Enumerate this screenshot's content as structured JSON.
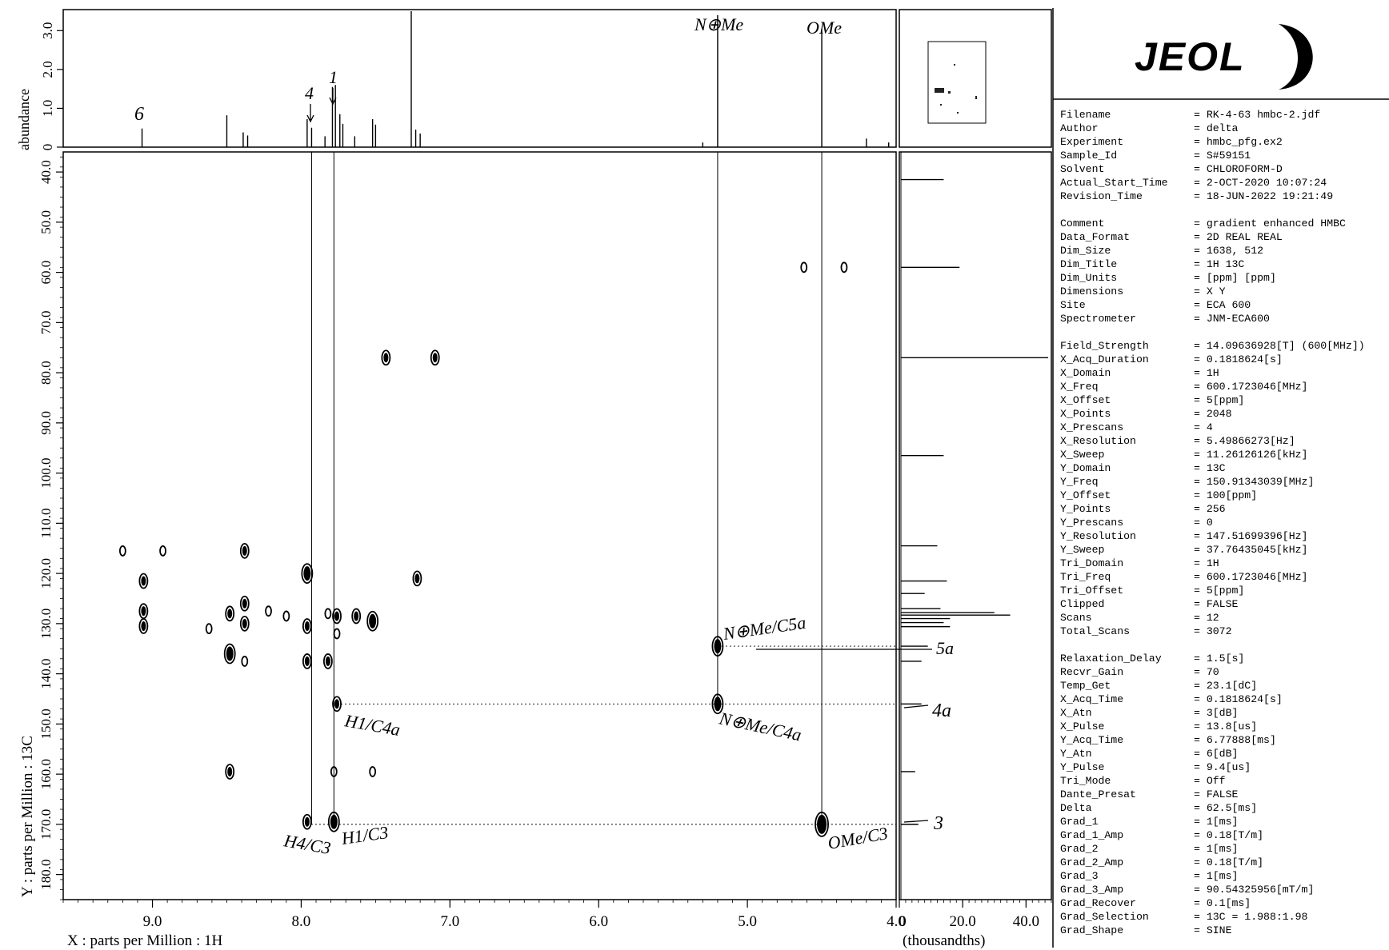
{
  "chart_data": {
    "type": "scatter",
    "title": "",
    "xlabel": "X : parts per Million : 1H",
    "ylabel": "Y : parts per Million : 13C",
    "top_ylabel": "abundance",
    "right_xlabel": "(thousandths)",
    "xlim": [
      9.6,
      4.0
    ],
    "ylim": [
      36.0,
      185.0
    ],
    "x_ticks": [
      {
        "v": 9.0,
        "label": "9.0"
      },
      {
        "v": 8.0,
        "label": "8.0"
      },
      {
        "v": 7.0,
        "label": "7.0"
      },
      {
        "v": 6.0,
        "label": "6.0"
      },
      {
        "v": 5.0,
        "label": "5.0"
      },
      {
        "v": 4.0,
        "label": "4.0"
      }
    ],
    "y_ticks": [
      {
        "v": 40,
        "label": "40.0"
      },
      {
        "v": 50,
        "label": "50.0"
      },
      {
        "v": 60,
        "label": "60.0"
      },
      {
        "v": 70,
        "label": "70.0"
      },
      {
        "v": 80,
        "label": "80.0"
      },
      {
        "v": 90,
        "label": "90.0"
      },
      {
        "v": 100,
        "label": "100.0"
      },
      {
        "v": 110,
        "label": "110.0"
      },
      {
        "v": 120,
        "label": "120.0"
      },
      {
        "v": 130,
        "label": "130.0"
      },
      {
        "v": 140,
        "label": "140.0"
      },
      {
        "v": 150,
        "label": "150.0"
      },
      {
        "v": 160,
        "label": "160.0"
      },
      {
        "v": 170,
        "label": "170.0"
      },
      {
        "v": 180,
        "label": "180.0"
      }
    ],
    "top_ticks": [
      {
        "v": 0.0,
        "label": "0"
      },
      {
        "v": 1.0,
        "label": "1.0"
      },
      {
        "v": 2.0,
        "label": "2.0"
      },
      {
        "v": 3.0,
        "label": "3.0"
      }
    ],
    "top_ylim": [
      0.0,
      3.5
    ],
    "right_ticks": [
      {
        "v": 0,
        "label": "0"
      },
      {
        "v": 20,
        "label": "20.0"
      },
      {
        "v": 40,
        "label": "40.0"
      }
    ],
    "right_xlim": [
      0,
      48
    ],
    "cross_peaks": [
      {
        "x": 9.2,
        "y": 115.5,
        "s": 1
      },
      {
        "x": 8.93,
        "y": 115.5,
        "s": 1
      },
      {
        "x": 8.38,
        "y": 115.5,
        "s": 2
      },
      {
        "x": 9.06,
        "y": 121.5,
        "s": 2
      },
      {
        "x": 9.06,
        "y": 127.5,
        "s": 2
      },
      {
        "x": 9.06,
        "y": 130.5,
        "s": 2
      },
      {
        "x": 8.62,
        "y": 131.0,
        "s": 1
      },
      {
        "x": 8.48,
        "y": 128.0,
        "s": 2
      },
      {
        "x": 8.48,
        "y": 136.0,
        "s": 3
      },
      {
        "x": 8.48,
        "y": 159.5,
        "s": 2
      },
      {
        "x": 8.38,
        "y": 126.0,
        "s": 2
      },
      {
        "x": 8.38,
        "y": 130.0,
        "s": 2
      },
      {
        "x": 8.38,
        "y": 137.5,
        "s": 1
      },
      {
        "x": 8.22,
        "y": 127.5,
        "s": 1
      },
      {
        "x": 8.1,
        "y": 128.5,
        "s": 1
      },
      {
        "x": 7.96,
        "y": 120.0,
        "s": 3
      },
      {
        "x": 7.96,
        "y": 130.5,
        "s": 2
      },
      {
        "x": 7.96,
        "y": 137.5,
        "s": 2
      },
      {
        "x": 7.96,
        "y": 169.5,
        "s": 2
      },
      {
        "x": 7.82,
        "y": 128.0,
        "s": 1
      },
      {
        "x": 7.82,
        "y": 137.5,
        "s": 2
      },
      {
        "x": 7.76,
        "y": 128.5,
        "s": 2
      },
      {
        "x": 7.76,
        "y": 132.0,
        "s": 1
      },
      {
        "x": 7.76,
        "y": 146.0,
        "s": 2
      },
      {
        "x": 7.78,
        "y": 159.5,
        "s": 1
      },
      {
        "x": 7.78,
        "y": 169.5,
        "s": 3
      },
      {
        "x": 7.63,
        "y": 128.5,
        "s": 2
      },
      {
        "x": 7.52,
        "y": 129.5,
        "s": 3
      },
      {
        "x": 7.52,
        "y": 159.5,
        "s": 1
      },
      {
        "x": 7.43,
        "y": 77.0,
        "s": 2
      },
      {
        "x": 7.1,
        "y": 77.0,
        "s": 2
      },
      {
        "x": 7.22,
        "y": 121.0,
        "s": 2
      },
      {
        "x": 4.62,
        "y": 59.0,
        "s": 1
      },
      {
        "x": 4.35,
        "y": 59.0,
        "s": 1
      },
      {
        "x": 5.2,
        "y": 134.5,
        "s": 3
      },
      {
        "x": 5.2,
        "y": 146.0,
        "s": 3
      },
      {
        "x": 4.5,
        "y": 170.0,
        "s": 4
      }
    ],
    "spectrum_1h": [
      {
        "x": 9.07,
        "h": 0.48
      },
      {
        "x": 8.5,
        "h": 0.82
      },
      {
        "x": 8.39,
        "h": 0.38
      },
      {
        "x": 8.36,
        "h": 0.3
      },
      {
        "x": 7.96,
        "h": 0.72
      },
      {
        "x": 7.93,
        "h": 0.5
      },
      {
        "x": 7.84,
        "h": 0.28
      },
      {
        "x": 7.79,
        "h": 1.55
      },
      {
        "x": 7.77,
        "h": 1.6
      },
      {
        "x": 7.74,
        "h": 0.85
      },
      {
        "x": 7.72,
        "h": 0.6
      },
      {
        "x": 7.64,
        "h": 0.28
      },
      {
        "x": 7.52,
        "h": 0.72
      },
      {
        "x": 7.5,
        "h": 0.58
      },
      {
        "x": 7.26,
        "h": 3.5
      },
      {
        "x": 7.23,
        "h": 0.45
      },
      {
        "x": 7.2,
        "h": 0.35
      },
      {
        "x": 5.3,
        "h": 0.12
      },
      {
        "x": 5.2,
        "h": 3.4
      },
      {
        "x": 4.5,
        "h": 3.05
      },
      {
        "x": 4.2,
        "h": 0.22
      },
      {
        "x": 4.05,
        "h": 0.12
      }
    ],
    "spectrum_13c": [
      {
        "y": 41.5,
        "h": 14
      },
      {
        "y": 59.0,
        "h": 19
      },
      {
        "y": 77.0,
        "h": 47
      },
      {
        "y": 96.5,
        "h": 14
      },
      {
        "y": 114.5,
        "h": 12
      },
      {
        "y": 121.5,
        "h": 15
      },
      {
        "y": 124.0,
        "h": 8
      },
      {
        "y": 127.0,
        "h": 13
      },
      {
        "y": 127.8,
        "h": 30
      },
      {
        "y": 128.3,
        "h": 35
      },
      {
        "y": 129.0,
        "h": 16
      },
      {
        "y": 129.8,
        "h": 14
      },
      {
        "y": 130.6,
        "h": 16
      },
      {
        "y": 134.5,
        "h": 9
      },
      {
        "y": 137.5,
        "h": 7
      },
      {
        "y": 146.0,
        "h": 7
      },
      {
        "y": 159.5,
        "h": 5
      },
      {
        "y": 170.0,
        "h": 6
      }
    ],
    "correlation_lines": [
      {
        "x": 7.93,
        "y1": 36,
        "y2": 170
      },
      {
        "x": 7.78,
        "y1": 36,
        "y2": 170
      },
      {
        "x": 5.2,
        "y1": 36,
        "y2": 146
      },
      {
        "x": 4.5,
        "y1": 36,
        "y2": 170
      }
    ],
    "annotations": {
      "peak_6": "6",
      "peak_4": "4",
      "peak_1": "1",
      "nme": "N⊕Me",
      "ome": "OMe",
      "nme_c5a": "N⊕Me/C5a",
      "h1_c4a": "H1/C4a",
      "nme_c4a": "N⊕Me/C4a",
      "h4_c3": "H4/C3",
      "h1_c3": "H1/C3",
      "ome_c3": "OMe/C3",
      "c5a": "5a",
      "c4a": "4a",
      "c3": "3"
    }
  },
  "logo": {
    "text": "JEOL"
  },
  "params": [
    {
      "k": "Filename",
      "v": "= RK-4-63 hmbc-2.jdf"
    },
    {
      "k": "Author",
      "v": "= delta"
    },
    {
      "k": "Experiment",
      "v": "= hmbc_pfg.ex2"
    },
    {
      "k": "Sample_Id",
      "v": "= S#59151"
    },
    {
      "k": "Solvent",
      "v": "= CHLOROFORM-D"
    },
    {
      "k": "Actual_Start_Time",
      "v": "=  2-OCT-2020 10:07:24"
    },
    {
      "k": "Revision_Time",
      "v": "= 18-JUN-2022 19:21:49"
    },
    {
      "gap": true
    },
    {
      "k": "Comment",
      "v": "= gradient enhanced HMBC"
    },
    {
      "k": "Data_Format",
      "v": "= 2D REAL REAL"
    },
    {
      "k": "Dim_Size",
      "v": "= 1638, 512"
    },
    {
      "k": "Dim_Title",
      "v": "= 1H 13C"
    },
    {
      "k": "Dim_Units",
      "v": "= [ppm] [ppm]"
    },
    {
      "k": "Dimensions",
      "v": "= X Y"
    },
    {
      "k": "Site",
      "v": "= ECA 600"
    },
    {
      "k": "Spectrometer",
      "v": "= JNM-ECA600"
    },
    {
      "gap": true
    },
    {
      "k": "Field_Strength",
      "v": "= 14.09636928[T] (600[MHz])"
    },
    {
      "k": "X_Acq_Duration",
      "v": "= 0.1818624[s]"
    },
    {
      "k": "X_Domain",
      "v": "= 1H"
    },
    {
      "k": "X_Freq",
      "v": "= 600.1723046[MHz]"
    },
    {
      "k": "X_Offset",
      "v": "= 5[ppm]"
    },
    {
      "k": "X_Points",
      "v": "= 2048"
    },
    {
      "k": "X_Prescans",
      "v": "= 4"
    },
    {
      "k": "X_Resolution",
      "v": "= 5.49866273[Hz]"
    },
    {
      "k": "X_Sweep",
      "v": "= 11.26126126[kHz]"
    },
    {
      "k": "Y_Domain",
      "v": "= 13C"
    },
    {
      "k": "Y_Freq",
      "v": "= 150.91343039[MHz]"
    },
    {
      "k": "Y_Offset",
      "v": "= 100[ppm]"
    },
    {
      "k": "Y_Points",
      "v": "= 256"
    },
    {
      "k": "Y_Prescans",
      "v": "= 0"
    },
    {
      "k": "Y_Resolution",
      "v": "= 147.51699396[Hz]"
    },
    {
      "k": "Y_Sweep",
      "v": "= 37.76435045[kHz]"
    },
    {
      "k": "Tri_Domain",
      "v": "= 1H"
    },
    {
      "k": "Tri_Freq",
      "v": "= 600.1723046[MHz]"
    },
    {
      "k": "Tri_Offset",
      "v": "= 5[ppm]"
    },
    {
      "k": "Clipped",
      "v": "= FALSE"
    },
    {
      "k": "Scans",
      "v": "= 12"
    },
    {
      "k": "Total_Scans",
      "v": "= 3072"
    },
    {
      "gap": true
    },
    {
      "k": "Relaxation_Delay",
      "v": "= 1.5[s]"
    },
    {
      "k": "Recvr_Gain",
      "v": "= 70"
    },
    {
      "k": "Temp_Get",
      "v": "= 23.1[dC]"
    },
    {
      "k": "X_Acq_Time",
      "v": "= 0.1818624[s]"
    },
    {
      "k": "X_Atn",
      "v": "= 3[dB]"
    },
    {
      "k": "X_Pulse",
      "v": "= 13.8[us]"
    },
    {
      "k": "Y_Acq_Time",
      "v": "= 6.77888[ms]"
    },
    {
      "k": "Y_Atn",
      "v": "= 6[dB]"
    },
    {
      "k": "Y_Pulse",
      "v": "= 9.4[us]"
    },
    {
      "k": "Tri_Mode",
      "v": "= Off"
    },
    {
      "k": "Dante_Presat",
      "v": "= FALSE"
    },
    {
      "k": "Delta",
      "v": "= 62.5[ms]"
    },
    {
      "k": "Grad_1",
      "v": "= 1[ms]"
    },
    {
      "k": "Grad_1_Amp",
      "v": "= 0.18[T/m]"
    },
    {
      "k": "Grad_2",
      "v": "= 1[ms]"
    },
    {
      "k": "Grad_2_Amp",
      "v": "= 0.18[T/m]"
    },
    {
      "k": "Grad_3",
      "v": "= 1[ms]"
    },
    {
      "k": "Grad_3_Amp",
      "v": "= 90.54325956[mT/m]"
    },
    {
      "k": "Grad_Recover",
      "v": "= 0.1[ms]"
    },
    {
      "k": "Grad_Selection",
      "v": "= 13C = 1.988:1.98"
    },
    {
      "k": "Grad_Shape",
      "v": "= SINE"
    }
  ]
}
